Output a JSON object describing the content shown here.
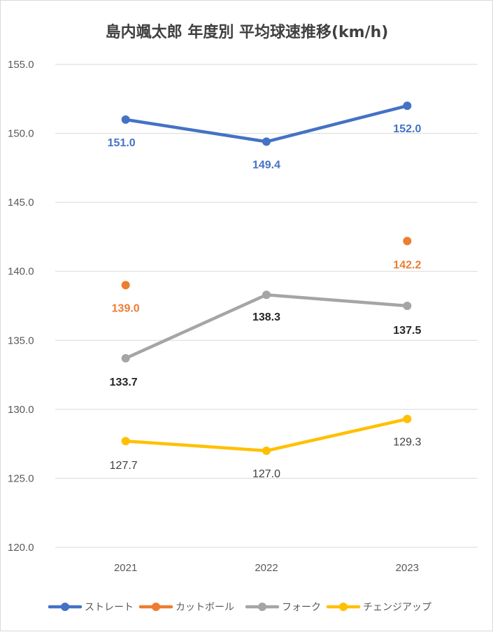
{
  "chart_data": {
    "type": "line",
    "title": "島内颯太郎 年度別 平均球速推移(km/h)",
    "categories": [
      "2021",
      "2022",
      "2023"
    ],
    "ylim": [
      120,
      155
    ],
    "ytick_labels": [
      "155.0",
      "150.0",
      "145.0",
      "140.0",
      "135.0",
      "130.0",
      "125.0",
      "120.0"
    ],
    "grid": true,
    "legend_position": "bottom",
    "series": [
      {
        "name": "ストレート",
        "values": [
          151.0,
          149.4,
          152.0
        ],
        "labels": [
          "151.0",
          "149.4",
          "152.0"
        ],
        "color": "#4472C4",
        "label_color": "#4472C4",
        "label_bold": true,
        "connected": true
      },
      {
        "name": "カットボール",
        "values": [
          139.0,
          null,
          142.2
        ],
        "labels": [
          "139.0",
          "",
          "142.2"
        ],
        "color": "#ED7D31",
        "label_color": "#ED7D31",
        "label_bold": true,
        "connected": false
      },
      {
        "name": "フォーク",
        "values": [
          133.7,
          138.3,
          137.5
        ],
        "labels": [
          "133.7",
          "138.3",
          "137.5"
        ],
        "color": "#A5A5A5",
        "label_color": "#262626",
        "label_bold": true,
        "connected": true
      },
      {
        "name": "チェンジアップ",
        "values": [
          127.7,
          127.0,
          129.3
        ],
        "labels": [
          "127.7",
          "127.0",
          "129.3"
        ],
        "color": "#FFC000",
        "label_color": "#404040",
        "label_bold": false,
        "connected": true
      }
    ]
  }
}
